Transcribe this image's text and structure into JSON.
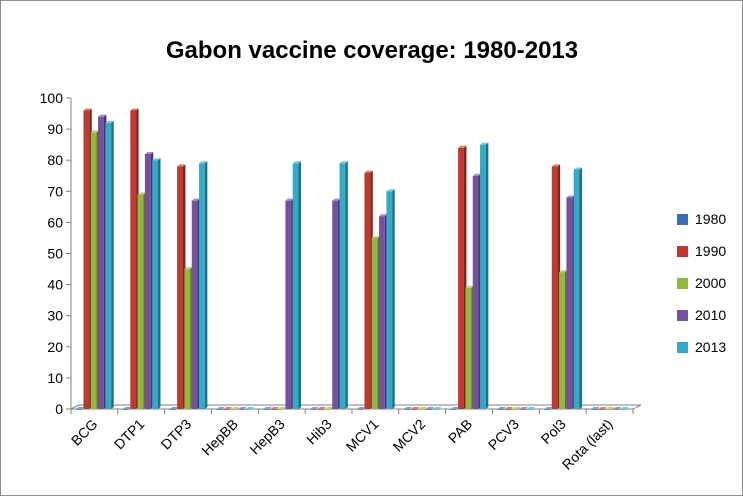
{
  "chart_data": {
    "type": "bar",
    "title": "Gabon vaccine coverage: 1980-2013",
    "xlabel": "",
    "ylabel": "",
    "ylim": [
      0,
      100
    ],
    "yticks": [
      0,
      10,
      20,
      30,
      40,
      50,
      60,
      70,
      80,
      90,
      100
    ],
    "grid": false,
    "legend_position": "right",
    "categories": [
      "BCG",
      "DTP1",
      "DTP3",
      "HepBB",
      "HepB3",
      "Hib3",
      "MCV1",
      "MCV2",
      "PAB",
      "PCV3",
      "Pol3",
      "Rota (last)"
    ],
    "series": [
      {
        "name": "1980",
        "color": "#3a6db5",
        "values": [
          0,
          0,
          0,
          0,
          0,
          0,
          0,
          0,
          0,
          0,
          0,
          0
        ]
      },
      {
        "name": "1990",
        "color": "#c0392f",
        "values": [
          96,
          96,
          78,
          0,
          0,
          0,
          76,
          0,
          84,
          0,
          78,
          0
        ]
      },
      {
        "name": "2000",
        "color": "#93b83e",
        "values": [
          89,
          69,
          45,
          0,
          0,
          0,
          55,
          0,
          39,
          0,
          44,
          0
        ]
      },
      {
        "name": "2010",
        "color": "#7452a0",
        "values": [
          94,
          82,
          67,
          0,
          67,
          67,
          62,
          0,
          75,
          0,
          68,
          0
        ]
      },
      {
        "name": "2013",
        "color": "#31abc8",
        "values": [
          92,
          80,
          79,
          0,
          79,
          79,
          70,
          0,
          85,
          0,
          77,
          0
        ]
      }
    ]
  }
}
